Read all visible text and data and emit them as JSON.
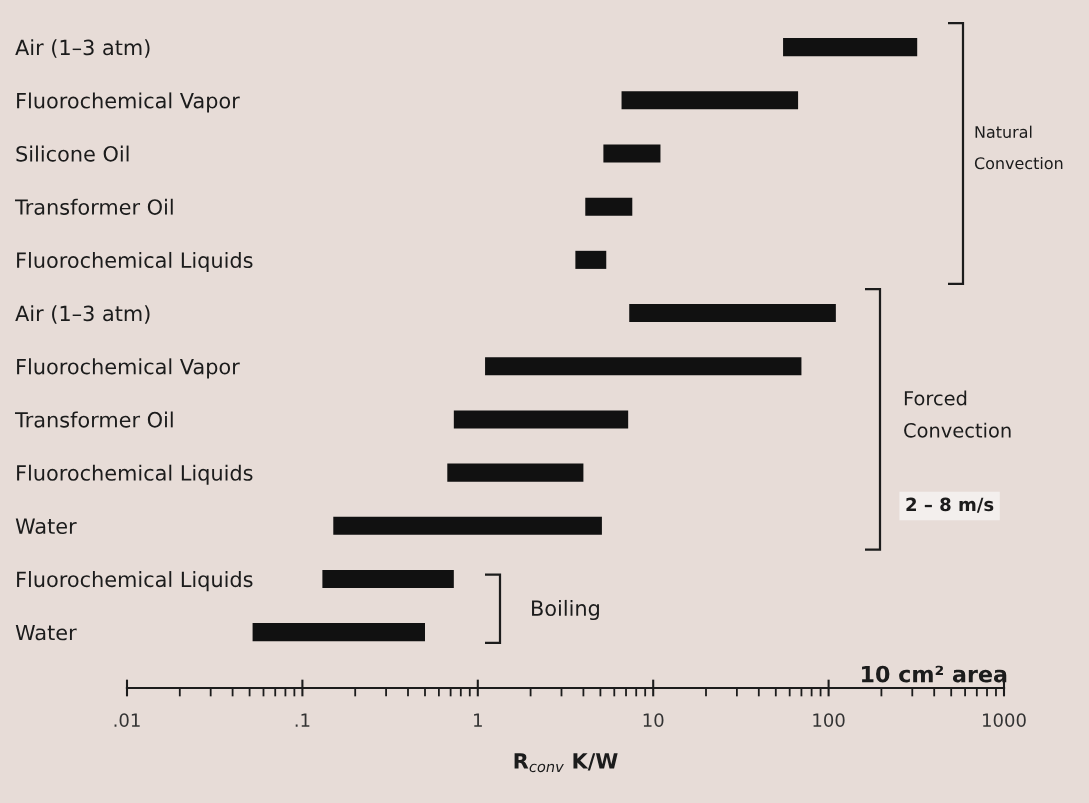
{
  "chart_data": {
    "type": "bar",
    "orientation": "horizontal",
    "categories": [
      "Air (1–3 atm)",
      "Fluorochemical Vapor",
      "Silicone Oil",
      "Transformer Oil",
      "Fluorochemical Liquids",
      "Air (1–3 atm)",
      "Fluorochemical Vapor",
      "Transformer Oil",
      "Fluorochemical Liquids",
      "Water",
      "Fluorochemical Liquids",
      "Water"
    ],
    "base": [
      55,
      6.6,
      5.2,
      4.1,
      3.6,
      7.3,
      1.1,
      0.73,
      0.67,
      0.15,
      0.13,
      0.052
    ],
    "values": [
      265,
      60.4,
      5.8,
      3.5,
      1.8,
      102.7,
      68.9,
      6.47,
      3.33,
      4.95,
      0.6,
      0.448
    ],
    "color": "#111111",
    "log": "x",
    "xlim": [
      0.01,
      1000
    ],
    "xticks": [
      {
        "value": 0.01,
        "label": ".01"
      },
      {
        "value": 0.1,
        "label": ".1"
      },
      1,
      10,
      100,
      1000
    ],
    "xlabel": "R$_{conv}$ K/W",
    "annotations": [
      "Natural\nConvection",
      "Forced\nConvection",
      "2 – 8 m/s",
      "Boiling",
      "10 cm² area"
    ]
  }
}
